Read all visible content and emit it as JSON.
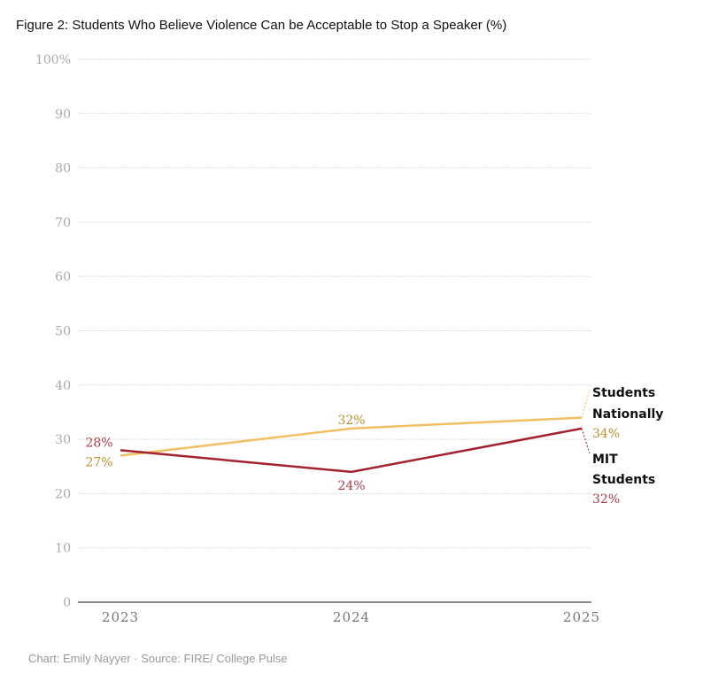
{
  "chart_data": {
    "type": "line",
    "title": "Figure 2: Students Who Believe Violence Can be Acceptable to Stop a Speaker (%)",
    "x": [
      "2023",
      "2024",
      "2025"
    ],
    "ylim": [
      0,
      100
    ],
    "yticks": [
      "0",
      "10",
      "20",
      "30",
      "40",
      "50",
      "60",
      "70",
      "80",
      "90",
      "100%"
    ],
    "grid": true,
    "series": [
      {
        "name": "Students Nationally",
        "label_lines": [
          "Students",
          "Nationally"
        ],
        "values": [
          27,
          32,
          34
        ],
        "labels": [
          "27%",
          "32%",
          "34%"
        ],
        "color": "#f2c063",
        "label_color": "#b8902f"
      },
      {
        "name": "MIT Students",
        "label_lines": [
          "MIT",
          "Students"
        ],
        "values": [
          28,
          24,
          32
        ],
        "labels": [
          "28%",
          "24%",
          "32%"
        ],
        "color": "#a3222d",
        "label_color": "#b03a45"
      }
    ]
  },
  "credit": "Chart: Emily Nayyer  · Source: FIRE/ College Pulse"
}
